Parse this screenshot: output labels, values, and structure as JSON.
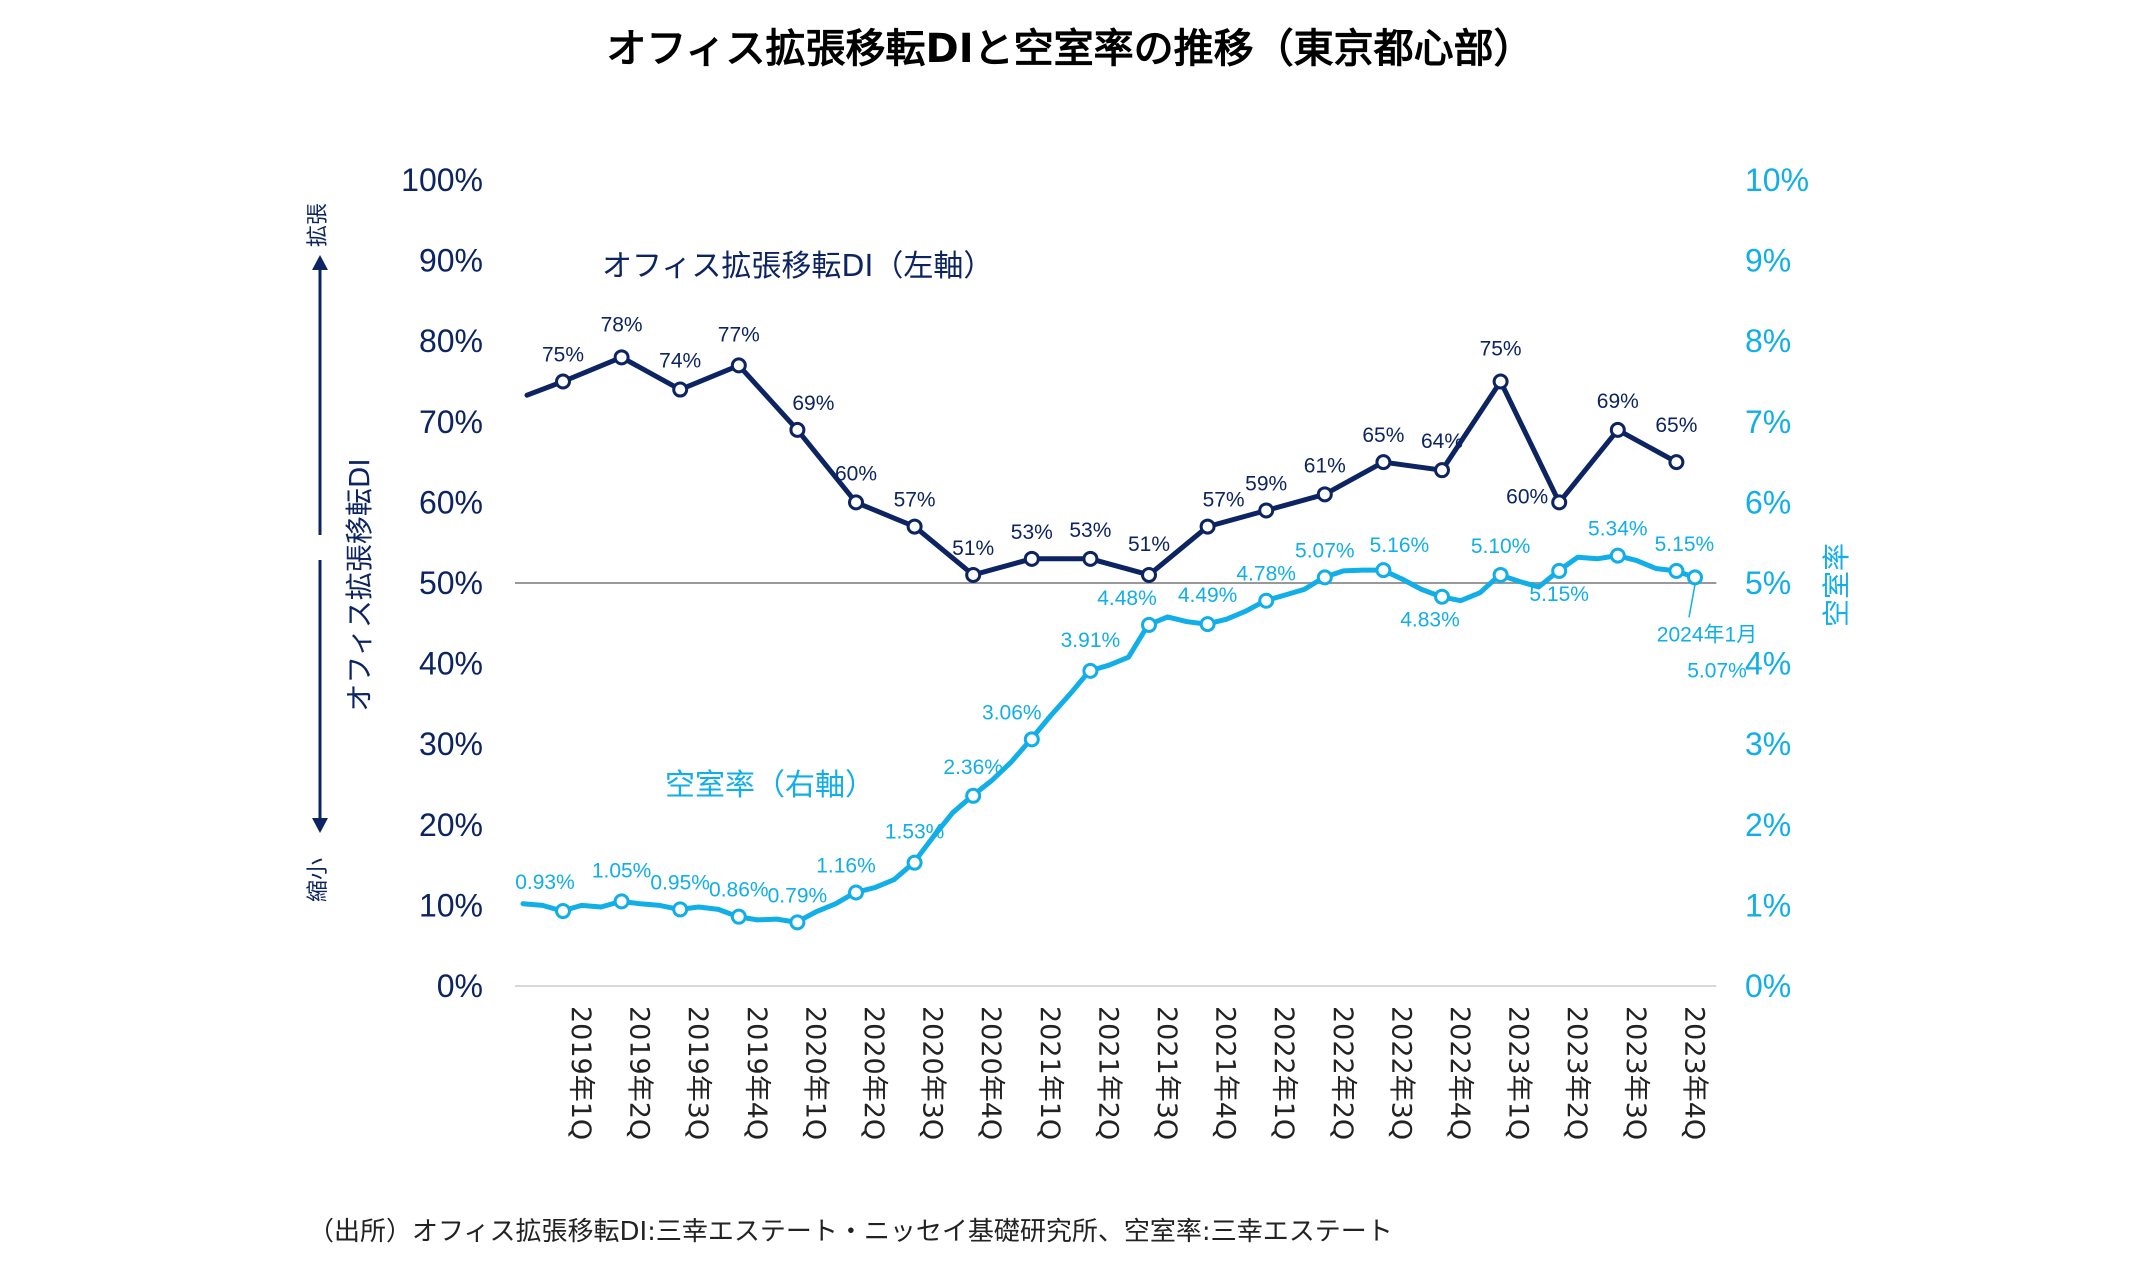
{
  "chart_data": {
    "type": "line",
    "title": "オフィス拡張移転DIと空室率の推移（東京都心部）",
    "source": "（出所）オフィス拡張移転DI:三幸エステート・ニッセイ基礎研究所、空室率:三幸エステート",
    "categories": [
      "2019年1Q",
      "2019年2Q",
      "2019年3Q",
      "2019年4Q",
      "2020年1Q",
      "2020年2Q",
      "2020年3Q",
      "2020年4Q",
      "2021年1Q",
      "2021年2Q",
      "2021年3Q",
      "2021年4Q",
      "2022年1Q",
      "2022年2Q",
      "2022年3Q",
      "2022年4Q",
      "2023年1Q",
      "2023年2Q",
      "2023年3Q",
      "2023年4Q"
    ],
    "left_axis": {
      "label": "オフィス拡張移転DI",
      "ylim": [
        0,
        100
      ],
      "ticks": [
        "0%",
        "10%",
        "20%",
        "30%",
        "40%",
        "50%",
        "60%",
        "70%",
        "80%",
        "90%",
        "100%"
      ],
      "top_arrow_label": "拡張",
      "bottom_arrow_label": "縮小"
    },
    "right_axis": {
      "label": "空室率",
      "ylim": [
        0,
        10
      ],
      "ticks": [
        "0%",
        "1%",
        "2%",
        "3%",
        "4%",
        "5%",
        "6%",
        "7%",
        "8%",
        "9%",
        "10%"
      ]
    },
    "reference_line": 50,
    "series": [
      {
        "name": "オフィス拡張移転DI（左軸）",
        "axis": "left",
        "color": "#0d2463",
        "start_value": 73.3,
        "values": [
          75,
          78,
          74,
          77,
          69,
          60,
          57,
          51,
          53,
          53,
          51,
          57,
          59,
          61,
          65,
          64,
          75,
          60,
          69,
          65
        ],
        "labels": [
          "75%",
          "78%",
          "74%",
          "77%",
          "69%",
          "60%",
          "57%",
          "51%",
          "53%",
          "53%",
          "51%",
          "57%",
          "59%",
          "61%",
          "65%",
          "64%",
          "75%",
          "60%",
          "69%",
          "65%"
        ]
      },
      {
        "name": "空室率（右軸）",
        "axis": "right",
        "color": "#11aee8",
        "monthly_values": [
          1.02,
          1.0,
          0.93,
          1.0,
          0.98,
          1.05,
          1.02,
          1.0,
          0.95,
          0.98,
          0.95,
          0.86,
          0.82,
          0.83,
          0.79,
          0.92,
          1.02,
          1.16,
          1.22,
          1.32,
          1.53,
          1.85,
          2.15,
          2.36,
          2.55,
          2.78,
          3.06,
          3.35,
          3.62,
          3.91,
          3.98,
          4.08,
          4.48,
          4.58,
          4.52,
          4.49,
          4.55,
          4.65,
          4.78,
          4.85,
          4.92,
          5.07,
          5.15,
          5.16,
          5.16,
          5.05,
          4.92,
          4.83,
          4.78,
          4.88,
          5.1,
          5.02,
          4.95,
          5.15,
          5.32,
          5.3,
          5.34,
          5.28,
          5.18,
          5.15,
          5.07
        ],
        "quarter_markers": [
          0.93,
          1.05,
          0.95,
          0.86,
          0.79,
          1.16,
          1.53,
          2.36,
          3.06,
          3.91,
          4.48,
          4.49,
          4.78,
          5.07,
          5.16,
          4.83,
          5.1,
          5.15,
          5.34,
          5.15
        ],
        "labels": [
          "0.93%",
          "1.05%",
          "0.95%",
          "0.86%",
          "0.79%",
          "1.16%",
          "1.53%",
          "2.36%",
          "3.06%",
          "3.91%",
          "4.48%",
          "4.49%",
          "4.78%",
          "5.07%",
          "5.16%",
          "4.83%",
          "5.10%",
          "5.15%",
          "5.34%",
          "5.15%"
        ],
        "last_point": {
          "label": "2024年1月",
          "value": 5.07,
          "value_label": "5.07%"
        }
      }
    ],
    "grid": false,
    "legend": "inline"
  }
}
